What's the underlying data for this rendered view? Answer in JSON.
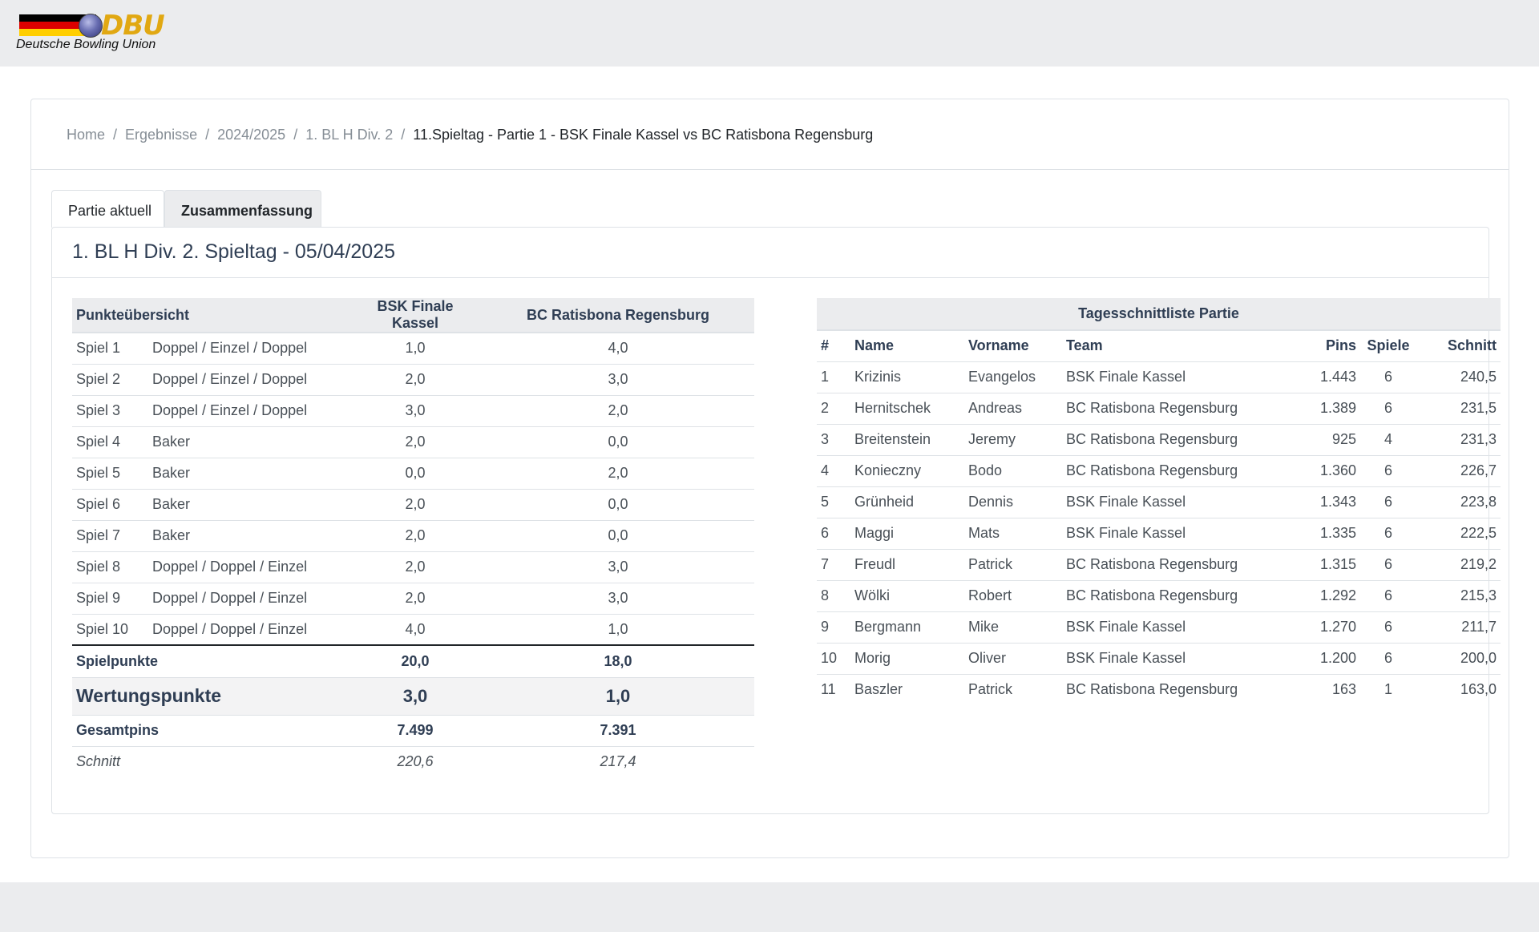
{
  "header": {
    "logo_text": "DBU",
    "logo_subtitle": "Deutsche Bowling Union"
  },
  "breadcrumb": {
    "items": [
      "Home",
      "Ergebnisse",
      "2024/2025",
      "1. BL H Div. 2"
    ],
    "active": "11.Spieltag - Partie 1 - BSK Finale Kassel vs BC Ratisbona Regensburg",
    "separator": "/"
  },
  "tabs": [
    {
      "label": "Partie aktuell",
      "active": false
    },
    {
      "label": "Zusammenfassung",
      "active": true
    }
  ],
  "panel_title": "1. BL H Div. 2. Spieltag - 05/04/2025",
  "points": {
    "headers": [
      "Punkteübersicht",
      "BSK Finale Kassel",
      "BC Ratisbona Regensburg"
    ],
    "rows": [
      {
        "game": "Spiel 1",
        "mode": "Doppel / Einzel / Doppel",
        "home": "1,0",
        "away": "4,0"
      },
      {
        "game": "Spiel 2",
        "mode": "Doppel / Einzel / Doppel",
        "home": "2,0",
        "away": "3,0"
      },
      {
        "game": "Spiel 3",
        "mode": "Doppel / Einzel / Doppel",
        "home": "3,0",
        "away": "2,0"
      },
      {
        "game": "Spiel 4",
        "mode": "Baker",
        "home": "2,0",
        "away": "0,0"
      },
      {
        "game": "Spiel 5",
        "mode": "Baker",
        "home": "0,0",
        "away": "2,0"
      },
      {
        "game": "Spiel 6",
        "mode": "Baker",
        "home": "2,0",
        "away": "0,0"
      },
      {
        "game": "Spiel 7",
        "mode": "Baker",
        "home": "2,0",
        "away": "0,0"
      },
      {
        "game": "Spiel 8",
        "mode": "Doppel / Doppel / Einzel",
        "home": "2,0",
        "away": "3,0"
      },
      {
        "game": "Spiel 9",
        "mode": "Doppel / Doppel / Einzel",
        "home": "2,0",
        "away": "3,0"
      },
      {
        "game": "Spiel 10",
        "mode": "Doppel / Doppel / Einzel",
        "home": "4,0",
        "away": "1,0"
      }
    ],
    "spielpunkte": {
      "label": "Spielpunkte",
      "home": "20,0",
      "away": "18,0"
    },
    "wertungspunkte": {
      "label": "Wertungspunkte",
      "home": "3,0",
      "away": "1,0"
    },
    "gesamtpins": {
      "label": "Gesamtpins",
      "home": "7.499",
      "away": "7.391"
    },
    "schnitt": {
      "label": "Schnitt",
      "home": "220,6",
      "away": "217,4"
    }
  },
  "averages": {
    "caption": "Tagesschnittliste Partie",
    "headers": [
      "#",
      "Name",
      "Vorname",
      "Team",
      "Pins",
      "Spiele",
      "Schnitt"
    ],
    "rows": [
      [
        "1",
        "Krizinis",
        "Evangelos",
        "BSK Finale Kassel",
        "1.443",
        "6",
        "240,5"
      ],
      [
        "2",
        "Hernitschek",
        "Andreas",
        "BC Ratisbona Regensburg",
        "1.389",
        "6",
        "231,5"
      ],
      [
        "3",
        "Breitenstein",
        "Jeremy",
        "BC Ratisbona Regensburg",
        "925",
        "4",
        "231,3"
      ],
      [
        "4",
        "Konieczny",
        "Bodo",
        "BC Ratisbona Regensburg",
        "1.360",
        "6",
        "226,7"
      ],
      [
        "5",
        "Grünheid",
        "Dennis",
        "BSK Finale Kassel",
        "1.343",
        "6",
        "223,8"
      ],
      [
        "6",
        "Maggi",
        "Mats",
        "BSK Finale Kassel",
        "1.335",
        "6",
        "222,5"
      ],
      [
        "7",
        "Freudl",
        "Patrick",
        "BC Ratisbona Regensburg",
        "1.315",
        "6",
        "219,2"
      ],
      [
        "8",
        "Wölki",
        "Robert",
        "BC Ratisbona Regensburg",
        "1.292",
        "6",
        "215,3"
      ],
      [
        "9",
        "Bergmann",
        "Mike",
        "BSK Finale Kassel",
        "1.270",
        "6",
        "211,7"
      ],
      [
        "10",
        "Morig",
        "Oliver",
        "BSK Finale Kassel",
        "1.200",
        "6",
        "200,0"
      ],
      [
        "11",
        "Baszler",
        "Patrick",
        "BC Ratisbona Regensburg",
        "163",
        "1",
        "163,0"
      ]
    ]
  },
  "colors": {
    "flag_black": "#000000",
    "flag_red": "#dd0000",
    "flag_gold": "#ffce00",
    "logo_gold": "#e1a812",
    "header_bg": "#ebecee",
    "heading_text": "#2f3e54"
  }
}
